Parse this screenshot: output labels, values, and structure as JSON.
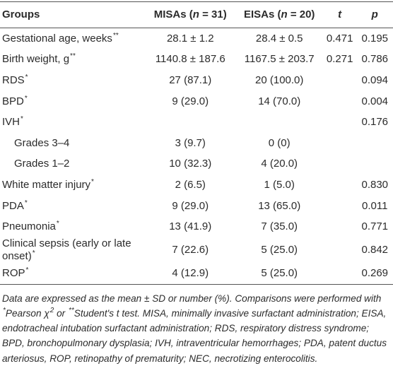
{
  "table": {
    "header": [
      [
        {
          "text": "Groups"
        }
      ],
      [
        {
          "text": "MISAs ("
        },
        {
          "text": "n",
          "style": "italic"
        },
        {
          "text": " = 31)"
        }
      ],
      [
        {
          "text": "EISAs ("
        },
        {
          "text": "n",
          "style": "italic"
        },
        {
          "text": " = 20)"
        }
      ],
      [
        {
          "text": "t",
          "style": "italic"
        }
      ],
      [
        {
          "text": "p",
          "style": "italic"
        }
      ]
    ],
    "rows": [
      {
        "cells": [
          [
            {
              "text": "Gestational age, weeks"
            },
            {
              "text": "**",
              "style": "sup"
            }
          ],
          "28.1 ± 1.2",
          "28.4 ± 0.5",
          "0.471",
          "0.195"
        ]
      },
      {
        "cells": [
          [
            {
              "text": "Birth weight, g"
            },
            {
              "text": "**",
              "style": "sup"
            }
          ],
          "1140.8 ± 187.6",
          "1167.5 ± 203.7",
          "0.271",
          "0.786"
        ]
      },
      {
        "cells": [
          [
            {
              "text": "RDS"
            },
            {
              "text": "*",
              "style": "sup"
            }
          ],
          "27 (87.1)",
          "20 (100.0)",
          null,
          "0.094"
        ]
      },
      {
        "cells": [
          [
            {
              "text": "BPD"
            },
            {
              "text": "*",
              "style": "sup"
            }
          ],
          "9 (29.0)",
          "14 (70.0)",
          null,
          "0.004"
        ]
      },
      {
        "cells": [
          [
            {
              "text": "IVH"
            },
            {
              "text": "*",
              "style": "sup"
            }
          ],
          null,
          null,
          null,
          "0.176"
        ]
      },
      {
        "indent": true,
        "cells": [
          [
            {
              "text": "Grades 3–4"
            }
          ],
          "3 (9.7)",
          "0 (0)",
          null,
          null
        ]
      },
      {
        "indent": true,
        "cells": [
          [
            {
              "text": "Grades 1–2"
            }
          ],
          "10 (32.3)",
          "4 (20.0)",
          null,
          null
        ]
      },
      {
        "cells": [
          [
            {
              "text": "White matter injury"
            },
            {
              "text": "*",
              "style": "sup"
            }
          ],
          "2 (6.5)",
          "1 (5.0)",
          null,
          "0.830"
        ]
      },
      {
        "cells": [
          [
            {
              "text": "PDA"
            },
            {
              "text": "*",
              "style": "sup"
            }
          ],
          "9 (29.0)",
          "13 (65.0)",
          null,
          "0.011"
        ]
      },
      {
        "cells": [
          [
            {
              "text": "Pneumonia"
            },
            {
              "text": "*",
              "style": "sup"
            }
          ],
          "13 (41.9)",
          "7 (35.0)",
          null,
          "0.771"
        ]
      },
      {
        "cells": [
          [
            {
              "text": "Clinical sepsis (early or late onset)"
            },
            {
              "text": "*",
              "style": "sup"
            }
          ],
          "7 (22.6)",
          "5 (25.0)",
          null,
          "0.842"
        ]
      },
      {
        "cells": [
          [
            {
              "text": "ROP"
            },
            {
              "text": "*",
              "style": "sup"
            }
          ],
          "4 (12.9)",
          "5 (25.0)",
          null,
          "0.269"
        ]
      }
    ]
  },
  "footnote": [
    {
      "text": "Data are expressed as the mean ± SD or number (%). Comparisons were performed with "
    },
    {
      "text": "*",
      "style": "sup"
    },
    {
      "text": "Pearson χ"
    },
    {
      "text": "2",
      "style": "sup"
    },
    {
      "text": " or "
    },
    {
      "text": "**",
      "style": "sup"
    },
    {
      "text": "Student's t test. MISA, minimally invasive surfactant administration; EISA, endotracheal intubation surfactant administration; RDS, respiratory distress syndrome; BPD, bronchopulmonary dysplasia; IVH, intraventricular hemorrhages; PDA, patent ductus arteriosus, ROP, retinopathy of prematurity; NEC, necrotizing enterocolitis."
    }
  ]
}
